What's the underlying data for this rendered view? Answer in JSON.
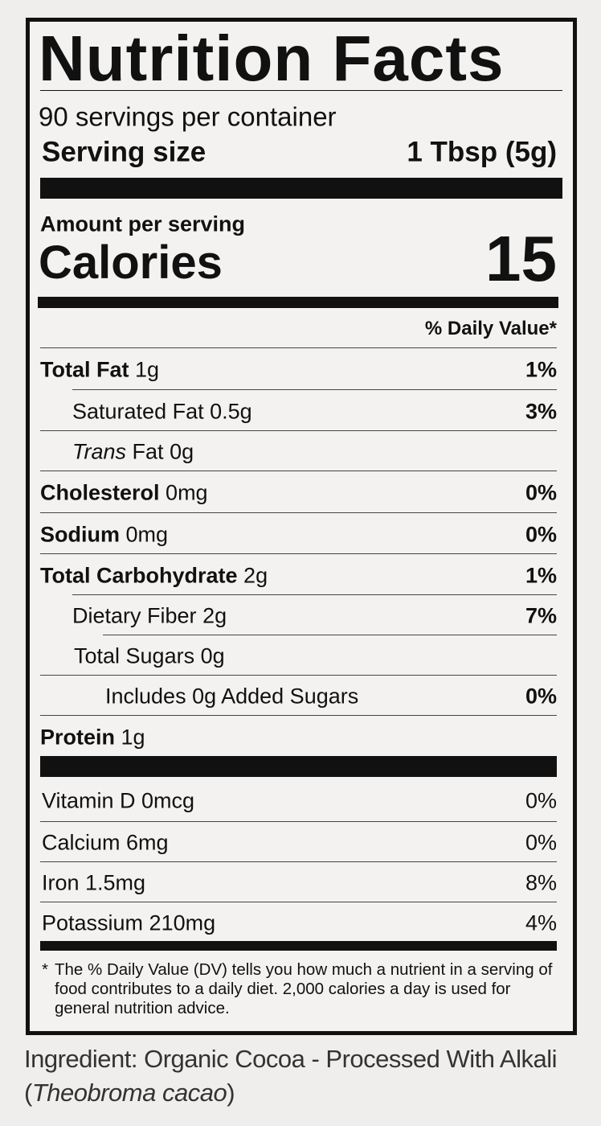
{
  "header": {
    "title": "Nutrition Facts",
    "servings": "90 servings per container",
    "serving_size_label": "Serving size",
    "serving_size": "1 Tbsp (5g)"
  },
  "calories": {
    "amount_label": "Amount per serving",
    "label": "Calories",
    "value": "15"
  },
  "dv_header": "% Daily Value*",
  "nutrients": [
    {
      "name": "Total Fat",
      "amount": "1g",
      "dv": "1%"
    },
    {
      "name": "Saturated Fat",
      "amount": "0.5g",
      "dv": "3%"
    },
    {
      "name_italic": "Trans",
      "name": "Fat",
      "amount": "0g"
    },
    {
      "name": "Cholesterol",
      "amount": "0mg",
      "dv": "0%"
    },
    {
      "name": "Sodium",
      "amount": "0mg",
      "dv": "0%"
    },
    {
      "name": "Total Carbohydrate",
      "amount": "2g",
      "dv": "1%"
    },
    {
      "name": "Dietary Fiber",
      "amount": "2g",
      "dv": "7%"
    },
    {
      "name": "Total Sugars",
      "amount": "0g"
    },
    {
      "name": "Includes 0g Added Sugars",
      "dv": "0%"
    },
    {
      "name": "Protein",
      "amount": "1g"
    }
  ],
  "vitamins": [
    {
      "text": "Vitamin D 0mcg",
      "dv": "0%"
    },
    {
      "text": "Calcium 6mg",
      "dv": "0%"
    },
    {
      "text": "Iron 1.5mg",
      "dv": "8%"
    },
    {
      "text": "Potassium 210mg",
      "dv": "4%"
    }
  ],
  "footnote": {
    "mark": "*",
    "text": "The % Daily Value (DV) tells you how much a nutrient in a serving of food contributes to a daily diet. 2,000 calories a day is used for general nutrition advice."
  },
  "ingredients": {
    "text": "Ingredient: Organic Cocoa - Processed With Alkali (",
    "latin": "Theobroma cacao",
    "close": ")"
  }
}
